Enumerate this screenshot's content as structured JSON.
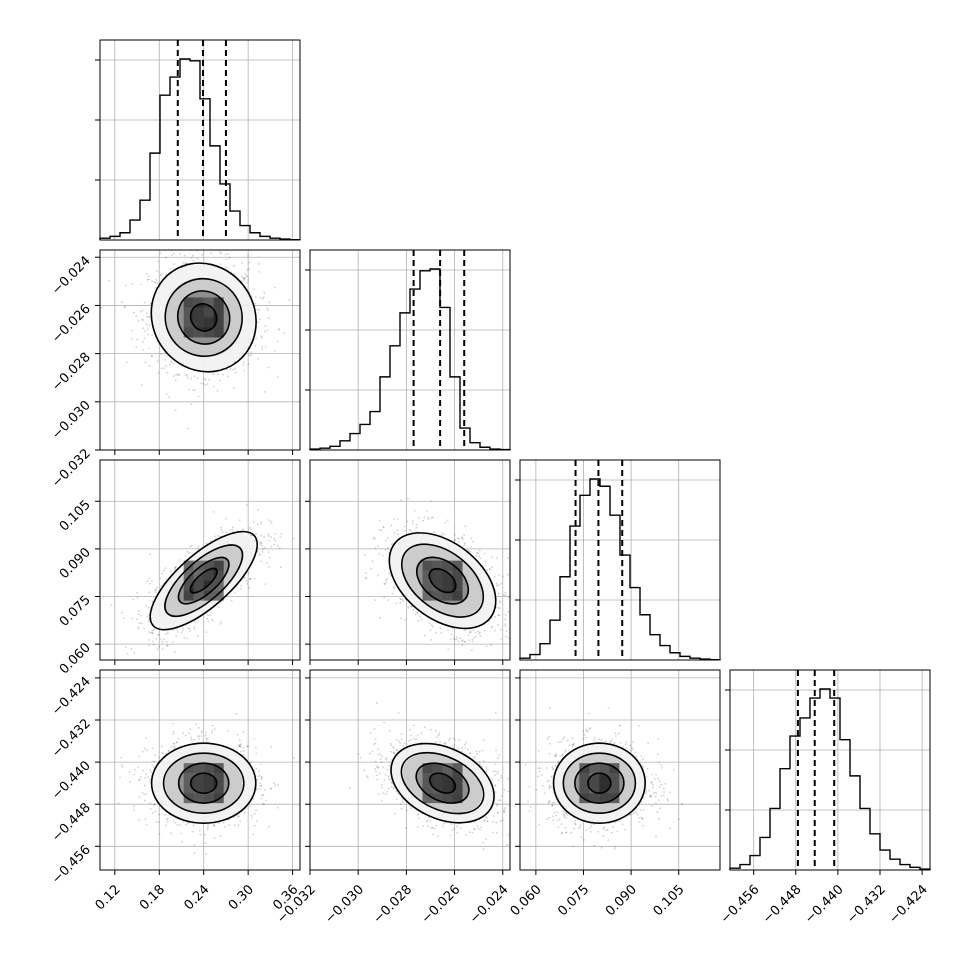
{
  "chart_data": {
    "type": "corner",
    "title": "",
    "grid": true,
    "parameters": [
      {
        "index": 0,
        "range": [
          0.1,
          0.37
        ],
        "ticks": [
          0.12,
          0.18,
          0.24,
          0.3,
          0.36
        ],
        "tick_labels": [
          "0.12",
          "0.18",
          "0.24",
          "0.30",
          "0.36"
        ],
        "mean": 0.24,
        "sd": 0.035,
        "quantiles": [
          0.205,
          0.239,
          0.27
        ],
        "histogram_counts": [
          1,
          2,
          4,
          11,
          22,
          48,
          80,
          90,
          100,
          99,
          78,
          52,
          31,
          16,
          8,
          4,
          2,
          1,
          0.5,
          0.2
        ]
      },
      {
        "index": 1,
        "range": [
          -0.032,
          -0.0237
        ],
        "ticks": [
          -0.032,
          -0.03,
          -0.028,
          -0.026,
          -0.024
        ],
        "tick_labels": [
          "−0.032",
          "−0.030",
          "−0.028",
          "−0.026",
          "−0.024"
        ],
        "mean": -0.0265,
        "sd": 0.0011,
        "quantiles": [
          -0.0277,
          -0.0266,
          -0.0256
        ],
        "histogram_counts": [
          0.5,
          1,
          2,
          5,
          9,
          14,
          21,
          40,
          57,
          75,
          88,
          98,
          99,
          78,
          40,
          12,
          4,
          1.5,
          0.5,
          0.2
        ]
      },
      {
        "index": 2,
        "range": [
          0.055,
          0.118
        ],
        "ticks": [
          0.06,
          0.075,
          0.09,
          0.105
        ],
        "tick_labels": [
          "0.060",
          "0.075",
          "0.090",
          "0.105"
        ],
        "mean": 0.08,
        "sd": 0.0075,
        "quantiles": [
          0.0725,
          0.0797,
          0.0872
        ],
        "histogram_counts": [
          1,
          3,
          9,
          22,
          46,
          74,
          91,
          100,
          96,
          80,
          58,
          40,
          25,
          14,
          8,
          4,
          2,
          1,
          0.5,
          0.2
        ]
      },
      {
        "index": 3,
        "range": [
          -0.4605,
          -0.4225
        ],
        "ticks": [
          -0.456,
          -0.448,
          -0.44,
          -0.432,
          -0.424
        ],
        "tick_labels": [
          "−0.456",
          "−0.448",
          "−0.440",
          "−0.432",
          "−0.424"
        ],
        "mean": -0.444,
        "sd": 0.0038,
        "quantiles": [
          -0.4476,
          -0.4444,
          -0.4407
        ],
        "histogram_counts": [
          1,
          3,
          8,
          18,
          34,
          56,
          74,
          84,
          95,
          100,
          95,
          72,
          52,
          34,
          20,
          11,
          6,
          3,
          1.5,
          0.5
        ]
      }
    ],
    "correlations": [
      [
        0,
        1,
        -0.05
      ],
      [
        0,
        2,
        0.72
      ],
      [
        1,
        2,
        -0.42
      ],
      [
        0,
        3,
        0.0
      ],
      [
        1,
        3,
        -0.35
      ],
      [
        2,
        3,
        0.0
      ]
    ],
    "contour_levels_sigma": [
      0.5,
      1.0,
      1.5,
      2.0
    ],
    "quantile_line_style": "dashed",
    "histogram_style": "step",
    "scatter_color": "#000000"
  }
}
